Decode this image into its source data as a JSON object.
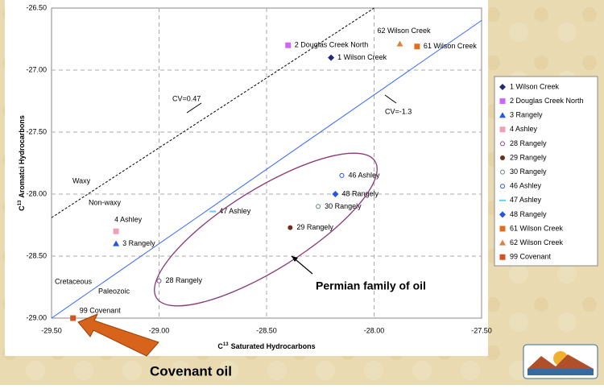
{
  "chart_data": {
    "type": "scatter",
    "xlabel": {
      "symbol": "C",
      "superscript": "13",
      "text": "Saturated Hydrocarbons"
    },
    "ylabel": {
      "symbol": "C",
      "superscript": "13",
      "text": "Aromatci Hydrocarbons"
    },
    "xlim": [
      -29.5,
      -27.5
    ],
    "ylim": [
      -29.0,
      -26.5
    ],
    "xticks": [
      {
        "value": -29.5,
        "label": "-29.50"
      },
      {
        "value": -29.0,
        "label": "-29.00"
      },
      {
        "value": -28.5,
        "label": "-28.50"
      },
      {
        "value": -28.0,
        "label": "-28.00"
      },
      {
        "value": -27.5,
        "label": "-27.50"
      }
    ],
    "yticks": [
      {
        "value": -29.0,
        "label": "-29.00"
      },
      {
        "value": -28.5,
        "label": "-28.50"
      },
      {
        "value": -28.0,
        "label": "-28.00"
      },
      {
        "value": -27.5,
        "label": "-27.50"
      },
      {
        "value": -27.0,
        "label": "-27.00"
      },
      {
        "value": -26.5,
        "label": "-26.50"
      }
    ],
    "grid": true,
    "legend": "right",
    "series": [
      {
        "name": "1 Wilson Creek",
        "color": "#1f2a7a",
        "marker": "diamond",
        "x": [
          -28.2
        ],
        "values": [
          -26.9
        ]
      },
      {
        "name": "2 Douglas Creek North",
        "color": "#cc66ff",
        "marker": "square",
        "x": [
          -28.4
        ],
        "values": [
          -26.8
        ]
      },
      {
        "name": "3 Rangely",
        "color": "#2255ee",
        "marker": "triangle",
        "x": [
          -29.2
        ],
        "values": [
          -28.4
        ]
      },
      {
        "name": "4 Ashley",
        "color": "#f0a0b4",
        "marker": "square",
        "x": [
          -29.2
        ],
        "values": [
          -28.3
        ]
      },
      {
        "name": "28 Rangely",
        "color": "#7a4a8a",
        "marker": "open-circle",
        "x": [
          -29.0
        ],
        "values": [
          -28.7
        ]
      },
      {
        "name": "29 Rangely",
        "color": "#6b2e1a",
        "marker": "circle",
        "x": [
          -28.39
        ],
        "values": [
          -28.27
        ]
      },
      {
        "name": "30 Rangely",
        "color": "#5f8a78",
        "marker": "open-circle",
        "x": [
          -28.26
        ],
        "values": [
          -28.1
        ]
      },
      {
        "name": "46 Ashley",
        "color": "#2255ee",
        "marker": "open-circle",
        "x": [
          -28.15
        ],
        "values": [
          -27.85
        ]
      },
      {
        "name": "47 Ashley",
        "color": "#66ccff",
        "marker": "dash",
        "x": [
          -28.75
        ],
        "values": [
          -28.14
        ]
      },
      {
        "name": "48 Rangely",
        "color": "#2255ee",
        "marker": "diamond",
        "x": [
          -28.18
        ],
        "values": [
          -28.0
        ]
      },
      {
        "name": "61 Wilson Creek",
        "color": "#e07020",
        "marker": "square",
        "x": [
          -27.8
        ],
        "values": [
          -26.81
        ]
      },
      {
        "name": "62 Wilson Creek",
        "color": "#e08040",
        "marker": "triangle",
        "x": [
          -27.88
        ],
        "values": [
          -26.79
        ]
      },
      {
        "name": "99 Covenant",
        "color": "#cc5522",
        "marker": "square",
        "x": [
          -29.4
        ],
        "values": [
          -29.0
        ]
      }
    ],
    "lines": [
      {
        "label": "CV=-1.3",
        "color": "#3366ff",
        "dash": false,
        "x": [
          -29.5,
          -27.5
        ],
        "y": [
          -29.0,
          -26.6
        ]
      },
      {
        "label": "CV=0.47",
        "color": "#000000",
        "dash": true,
        "x": [
          -29.5,
          -28.0
        ],
        "y": [
          -28.19,
          -26.5
        ]
      }
    ],
    "annotations": [
      "Waxy",
      "Non-waxy",
      "Cretaceous",
      "Paleozoic",
      "Permian family of oil",
      "Covenant oil"
    ]
  }
}
